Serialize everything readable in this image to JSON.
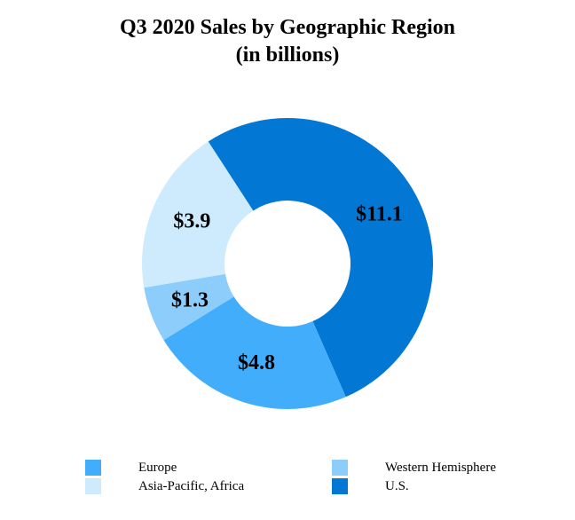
{
  "chart_data": {
    "type": "pie",
    "variant": "donut",
    "title": "Q3 2020 Sales by Geographic Region",
    "subtitle": "(in billions)",
    "slices": [
      {
        "label": "U.S.",
        "value": 11.1,
        "display": "$11.1",
        "color": "#0277d4"
      },
      {
        "label": "Europe",
        "value": 4.8,
        "display": "$4.8",
        "color": "#42adfb"
      },
      {
        "label": "Western Hemisphere",
        "value": 1.3,
        "display": "$1.3",
        "color": "#8ccdfb"
      },
      {
        "label": "Asia-Pacific, Africa",
        "value": 3.9,
        "display": "$3.9",
        "color": "#cdebfc"
      }
    ],
    "legend": {
      "placement": "bottom",
      "entries": [
        {
          "label": "Europe",
          "color": "#42adfb"
        },
        {
          "label": "Western Hemisphere",
          "color": "#8ccdfb"
        },
        {
          "label": "Asia-Pacific, Africa",
          "color": "#cdebfc"
        },
        {
          "label": "U.S.",
          "color": "#0277d4"
        }
      ]
    }
  }
}
